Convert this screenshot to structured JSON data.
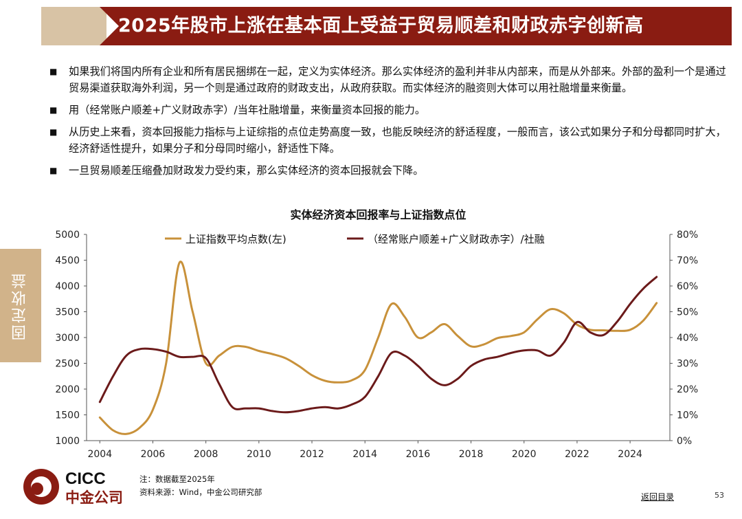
{
  "header": {
    "title": "2025年股市上涨在基本面上受益于贸易顺差和财政赤字创新高"
  },
  "bullets": [
    "如果我们将国内所有企业和所有居民捆绑在一起，定义为实体经济。那么实体经济的盈利并非从内部来，而是从外部来。外部的盈利一个是通过贸易渠道获取海外利润，另一个则是通过政府的财政支出，从政府获取。而实体经济的融资则大体可以用社融增量来衡量。",
    "用（经常账户顺差+广义财政赤字）/当年社融增量，来衡量资本回报的能力。",
    "从历史上来看，资本回报能力指标与上证综指的点位走势高度一致，也能反映经济的舒适程度，一般而言，该公式如果分子和分母都同时扩大，经济舒适性提升，如果分子和分母同时缩小，舒适性下降。",
    "一旦贸易顺差压缩叠加财政发力受约束，那么实体经济的资本回报就会下降。"
  ],
  "side_tab": "固定收益",
  "chart_data": {
    "type": "line",
    "title": "实体经济资本回报率与上证指数点位",
    "x_ticks": [
      2004,
      2006,
      2008,
      2010,
      2012,
      2014,
      2016,
      2018,
      2020,
      2022,
      2024
    ],
    "xlim": [
      2003.5,
      2025.5
    ],
    "y_left": {
      "ylim": [
        1000,
        5000
      ],
      "ticks": [
        "1000",
        "1500",
        "2000",
        "2500",
        "3000",
        "3500",
        "4000",
        "4500",
        "5000"
      ]
    },
    "y_right": {
      "ylim": [
        0,
        80
      ],
      "ticks": [
        "0%",
        "10%",
        "20%",
        "30%",
        "40%",
        "50%",
        "60%",
        "70%",
        "80%"
      ]
    },
    "series": [
      {
        "name": "上证指数平均点数(左)",
        "axis": "left",
        "color": "#c8913a",
        "x": [
          2004,
          2004.5,
          2005,
          2005.5,
          2006,
          2006.5,
          2007,
          2007.5,
          2008,
          2008.5,
          2009,
          2009.5,
          2010,
          2010.5,
          2011,
          2011.5,
          2012,
          2012.5,
          2013,
          2013.5,
          2014,
          2014.5,
          2015,
          2015.5,
          2016,
          2016.5,
          2017,
          2017.5,
          2018,
          2018.5,
          2019,
          2019.5,
          2020,
          2020.5,
          2021,
          2021.5,
          2022,
          2022.5,
          2023,
          2023.5,
          2024,
          2024.5,
          2025
        ],
        "values": [
          1450,
          1200,
          1130,
          1250,
          1600,
          2500,
          4450,
          3500,
          2500,
          2650,
          2820,
          2820,
          2740,
          2680,
          2600,
          2450,
          2270,
          2160,
          2130,
          2170,
          2370,
          3000,
          3650,
          3400,
          3000,
          3100,
          3260,
          3030,
          2830,
          2870,
          2990,
          3030,
          3100,
          3350,
          3550,
          3470,
          3250,
          3150,
          3140,
          3130,
          3150,
          3330,
          3670
        ]
      },
      {
        "name": "（经常账户顺差+广义财政赤字）/社融",
        "axis": "right",
        "color": "#6b1a1a",
        "x": [
          2004,
          2004.5,
          2005,
          2005.5,
          2006,
          2006.5,
          2007,
          2007.5,
          2008,
          2008.5,
          2009,
          2009.5,
          2010,
          2010.5,
          2011,
          2011.5,
          2012,
          2012.5,
          2013,
          2013.5,
          2014,
          2014.5,
          2015,
          2015.5,
          2016,
          2016.5,
          2017,
          2017.5,
          2018,
          2018.5,
          2019,
          2019.5,
          2020,
          2020.5,
          2021,
          2021.5,
          2022,
          2022.5,
          2023,
          2023.5,
          2024,
          2024.5,
          2025
        ],
        "values": [
          15,
          25,
          33,
          35.5,
          35.5,
          34.5,
          32.5,
          32.5,
          32,
          22,
          13,
          12.5,
          12.5,
          11.5,
          11,
          11.5,
          12.5,
          13,
          12.5,
          14,
          17,
          25,
          34,
          33,
          29,
          24,
          21.5,
          24,
          29,
          31.5,
          32.5,
          34,
          35,
          35,
          33,
          38,
          46,
          42,
          41,
          46,
          53,
          59,
          63.5
        ]
      }
    ]
  },
  "footer": {
    "logo_en": "CICC",
    "logo_cn": "中金公司",
    "note": "注：数据截至2025年",
    "source": "资料来源：Wind，中金公司研究部",
    "back_link": "返回目录",
    "page_number": "53"
  }
}
